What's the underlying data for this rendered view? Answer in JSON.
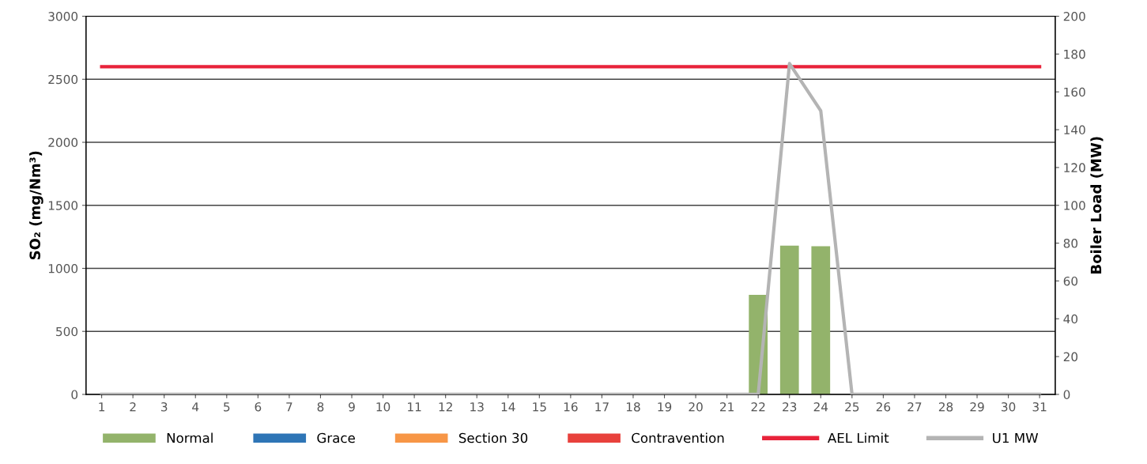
{
  "chart_data": {
    "type": "bar",
    "stacked": true,
    "categories": [
      "1",
      "2",
      "3",
      "4",
      "5",
      "6",
      "7",
      "8",
      "9",
      "10",
      "11",
      "12",
      "13",
      "14",
      "15",
      "16",
      "17",
      "18",
      "19",
      "20",
      "21",
      "22",
      "23",
      "24",
      "25",
      "26",
      "27",
      "28",
      "29",
      "30",
      "31"
    ],
    "series": [
      {
        "name": "Normal",
        "color": "#93b36b",
        "values": [
          0,
          0,
          0,
          0,
          0,
          0,
          0,
          0,
          0,
          0,
          0,
          0,
          0,
          0,
          0,
          0,
          0,
          0,
          0,
          0,
          0,
          790,
          1180,
          1175,
          0,
          0,
          0,
          0,
          0,
          0,
          0
        ]
      },
      {
        "name": "Grace",
        "color": "#2e75b6",
        "values": [
          null,
          null,
          null,
          null,
          null,
          null,
          null,
          null,
          null,
          null,
          null,
          null,
          null,
          null,
          null,
          null,
          null,
          null,
          null,
          null,
          null,
          null,
          null,
          null,
          null,
          null,
          null,
          null,
          null,
          null,
          null
        ]
      },
      {
        "name": "Section 30",
        "color": "#f79646",
        "values": [
          null,
          null,
          null,
          null,
          null,
          null,
          null,
          null,
          null,
          null,
          null,
          null,
          null,
          null,
          null,
          null,
          null,
          null,
          null,
          null,
          null,
          null,
          null,
          null,
          null,
          null,
          null,
          null,
          null,
          null,
          null
        ]
      },
      {
        "name": "Contravention",
        "color": "#e8413c",
        "values": [
          null,
          null,
          null,
          null,
          null,
          null,
          null,
          null,
          null,
          null,
          null,
          null,
          null,
          null,
          null,
          null,
          null,
          null,
          null,
          null,
          null,
          null,
          null,
          null,
          null,
          null,
          null,
          null,
          null,
          null,
          null
        ]
      },
      {
        "name": "AEL Limit",
        "type": "line",
        "color": "#e8233a",
        "values": [
          2600,
          2600,
          2600,
          2600,
          2600,
          2600,
          2600,
          2600,
          2600,
          2600,
          2600,
          2600,
          2600,
          2600,
          2600,
          2600,
          2600,
          2600,
          2600,
          2600,
          2600,
          2600,
          2600,
          2600,
          2600,
          2600,
          2600,
          2600,
          2600,
          2600,
          2600
        ]
      },
      {
        "name": "U1 MW",
        "type": "line",
        "axis": "y2",
        "color": "#b4b4b4",
        "values": [
          0,
          0,
          0,
          0,
          0,
          0,
          0,
          0,
          0,
          0,
          0,
          0,
          0,
          0,
          0,
          0,
          0,
          0,
          0,
          0,
          0,
          0,
          175,
          150,
          0,
          0,
          0,
          0,
          0,
          0,
          0
        ]
      }
    ],
    "ylabel": "SO₂ (mg/Nm³)",
    "y2label": "Boiler Load (MW)",
    "ylim": [
      0,
      3000
    ],
    "yticks": [
      0,
      500,
      1000,
      1500,
      2000,
      2500,
      3000
    ],
    "y2lim": [
      0,
      200
    ],
    "y2ticks": [
      0,
      20,
      40,
      60,
      80,
      100,
      120,
      140,
      160,
      180,
      200
    ],
    "grid": "y",
    "legend": "bottom"
  }
}
